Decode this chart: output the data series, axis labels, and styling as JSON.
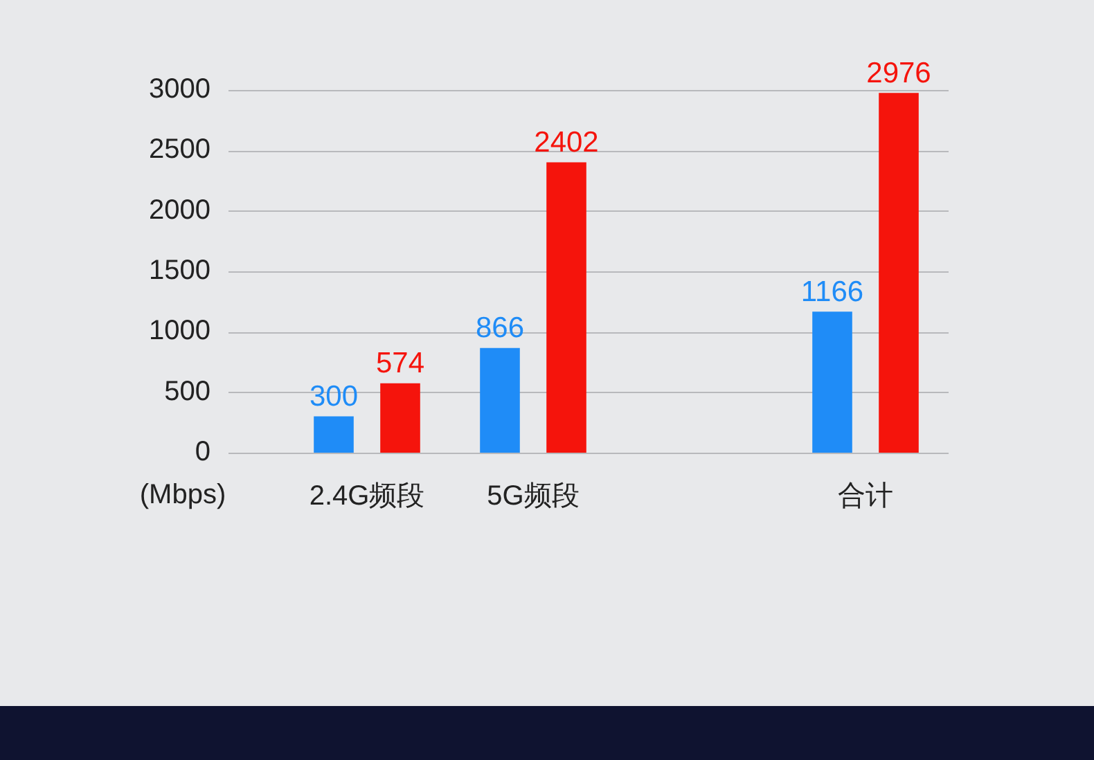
{
  "chart_data": {
    "type": "bar",
    "ylabel": "(Mbps)",
    "categories": [
      "2.4G频段",
      "5G频段",
      null,
      "合计"
    ],
    "series": [
      {
        "color": "#1f8cf7",
        "values": [
          300,
          866,
          null,
          1166
        ]
      },
      {
        "color": "#f5140c",
        "values": [
          574,
          2402,
          null,
          2976
        ]
      }
    ],
    "ylim": [
      0,
      3000
    ],
    "yticks": [
      0,
      500,
      1000,
      1500,
      2000,
      2500,
      3000
    ],
    "grid": "y",
    "data_labels": true
  }
}
